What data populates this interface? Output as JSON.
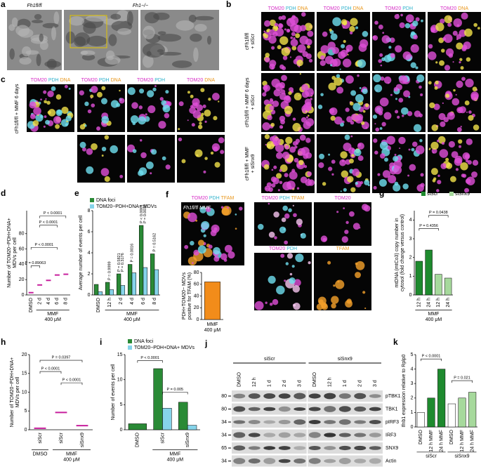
{
  "figure": {
    "a": {
      "letter": "a",
      "labels": [
        "Fh1fl/fl",
        "Fh1−/−"
      ]
    },
    "b": {
      "letter": "b",
      "headers": [
        [
          "TOM20",
          "PDH",
          "DNA"
        ],
        [
          "TOM20",
          "PDH",
          "DNA"
        ],
        [
          "TOM20",
          "PDH"
        ],
        [
          "TOM20",
          "DNA"
        ]
      ],
      "rows": [
        [
          "cFh1fl/fl",
          "+ siScr"
        ],
        [
          "cFh1fl/fl + MMF 6 days",
          "+ siScr"
        ],
        [
          "cFh1fl/fl + MMF",
          "+ siSnx9"
        ]
      ]
    },
    "c": {
      "letter": "c",
      "row": [
        "cFh1fl/fl + MMF 6 days"
      ],
      "headers": [
        [
          "TOM20",
          "PDH",
          "DNA"
        ],
        [
          "TOM20",
          "PDH",
          "DNA"
        ],
        [
          "TOM20",
          "PDH"
        ],
        [
          "TOM20",
          "DNA"
        ]
      ]
    },
    "f": {
      "letter": "f",
      "label": "Fh1fl/fl MMF",
      "headers": [
        [
          "TOM20",
          "PDH",
          "TFAM"
        ],
        [
          "TOM20",
          "PDH",
          "TFAM"
        ],
        [
          "TOM20"
        ],
        [
          "TOM20",
          "PDH"
        ],
        [
          "TFAM"
        ]
      ]
    },
    "j": {
      "letter": "j",
      "groups": [
        "siScr",
        "siSnx9"
      ],
      "lanes": [
        "DMSO",
        "12 h",
        "1 d",
        "2 d",
        "3 d"
      ],
      "proteins": [
        "pTBK1",
        "TBK1",
        "pIRF3",
        "IRF3",
        "SNX9",
        "Actin"
      ],
      "mw": [
        80,
        80,
        34,
        34,
        65,
        34
      ]
    }
  },
  "chart_data": [
    {
      "type": "scatter",
      "panel": "d",
      "y_label": [
        "Number of TOM20−PDH+DNA+",
        "MDVs per cell"
      ],
      "categories": [
        "DMSO",
        "2 d",
        "4 d",
        "6 d",
        "8 d"
      ],
      "values": [
        3,
        13,
        19,
        26,
        27
      ],
      "color": "#c71f9d",
      "ylim": [
        0,
        110
      ],
      "yticks": [
        0,
        20,
        40,
        60,
        80
      ],
      "groups": [
        [
          "MMF",
          "400 μM"
        ]
      ],
      "annotations": [
        "P < 0.0001",
        "P < 0.0001",
        "P < 0.0001",
        "P = 0.89063"
      ]
    },
    {
      "type": "bar",
      "panel": "e",
      "y_label": [
        "Average number of events per cell"
      ],
      "categories": [
        "DMSO",
        "12 h",
        "2 d",
        "4 d",
        "6 d",
        "8 d"
      ],
      "series": [
        {
          "name": "DNA foci",
          "color": "#2a8a36",
          "values": [
            1.0,
            1.2,
            2.0,
            2.9,
            6.6,
            3.9
          ]
        },
        {
          "name": "TOM20−PDH+DNA+ MDVs",
          "color": "#86d4ea",
          "values": [
            0.3,
            0.5,
            0.9,
            2.1,
            2.6,
            2.4
          ]
        }
      ],
      "ylim": [
        0,
        8
      ],
      "yticks": [
        0,
        2,
        4,
        6,
        8
      ],
      "groups": [
        [
          "MMF",
          "400 μM"
        ]
      ],
      "annotations": [
        "P = 0.9999",
        "P = 0.5821",
        "P = 0.3176",
        "P = 0.0016",
        "P < 0.0001",
        "P = 0.0036",
        "P = 0.5162"
      ]
    },
    {
      "type": "bar",
      "y_label": [
        "PDH+TOM20− MDVs",
        "positive for TFAM (%)"
      ],
      "categories": [
        "MMF"
      ],
      "values": [
        64
      ],
      "color": "#f28c1a",
      "ylim": [
        0,
        80
      ],
      "yticks": [
        0,
        20,
        40,
        60,
        80
      ],
      "groups": [
        [
          "400 μM"
        ]
      ]
    },
    {
      "type": "bar",
      "panel": "g",
      "y_label": [
        "mtDNA (mtCo3) copy number in",
        "cytosol (fold change versus control)"
      ],
      "categories": [
        "12 h",
        "24 h",
        "12 h",
        "24 h"
      ],
      "series": [
        {
          "name": "siScr",
          "color": "#1e8a2e",
          "values": [
            1.8,
            2.4,
            null,
            null
          ]
        },
        {
          "name": "siSnx9",
          "color": "#a6d99c",
          "values": [
            null,
            null,
            1.1,
            0.9
          ]
        }
      ],
      "ylim": [
        0,
        4.5
      ],
      "yticks": [
        0,
        1,
        2,
        3,
        4
      ],
      "groups": [
        [
          "MMF",
          "400 μM"
        ]
      ],
      "annotations": [
        "P = 0.0438",
        "P = 0.4356"
      ]
    },
    {
      "type": "scatter",
      "panel": "h",
      "y_label": [
        "Number of TOM20−PDH+DNA+",
        "MDVs per cell"
      ],
      "categories": [
        "siScr",
        "siScr",
        "siSnx9"
      ],
      "values": [
        0.4,
        4.6,
        1.1
      ],
      "color": "#c71f9d",
      "ylim": [
        0,
        20
      ],
      "yticks": [
        0,
        5,
        10,
        15,
        20
      ],
      "groups": [
        [
          "DMSO"
        ],
        [
          "MMF",
          "400 μM"
        ]
      ],
      "annotations": [
        "P = 0.0397",
        "P < 0.0001",
        "P < 0.0001"
      ]
    },
    {
      "type": "bar",
      "panel": "i",
      "y_label": [
        "Number of events per cell"
      ],
      "categories": [
        "DMSO",
        "siScr",
        "siSnx9"
      ],
      "series": [
        {
          "name": "DNA foci",
          "color": "#2a8a36",
          "values": [
            1.2,
            12.2,
            5.5
          ]
        },
        {
          "name": "TOM20−PDH+DNA+ MDVs",
          "color": "#86d4ea",
          "values": [
            null,
            4.3,
            0.9
          ]
        }
      ],
      "ylim": [
        0,
        15
      ],
      "yticks": [
        0,
        5,
        10,
        15
      ],
      "groups": [
        [
          "MMF",
          "400 μM"
        ]
      ],
      "annotations": [
        "P < 0.0001",
        "P = 0.005"
      ]
    },
    {
      "type": "bar",
      "panel": "k",
      "y_label": [
        "Ifnb1 expression relative to Rplp0"
      ],
      "categories": [
        "DMSO",
        "12 h MMF",
        "24 h MMF",
        "DMSO",
        "12 h MMF",
        "24 h MMF"
      ],
      "values": [
        1.0,
        2.0,
        4.0,
        1.6,
        2.0,
        2.4
      ],
      "colors": [
        "#ffffff",
        "#1e8a2e",
        "#1e8a2e",
        "#ffffff",
        "#a6d99c",
        "#a6d99c"
      ],
      "ylim": [
        0,
        5
      ],
      "yticks": [
        0,
        1,
        2,
        3,
        4,
        5
      ],
      "groups": [
        [
          "siScr"
        ],
        [
          "siSnx9"
        ]
      ],
      "annotations": [
        "P < 0.0001",
        "P = 0.021"
      ]
    }
  ]
}
